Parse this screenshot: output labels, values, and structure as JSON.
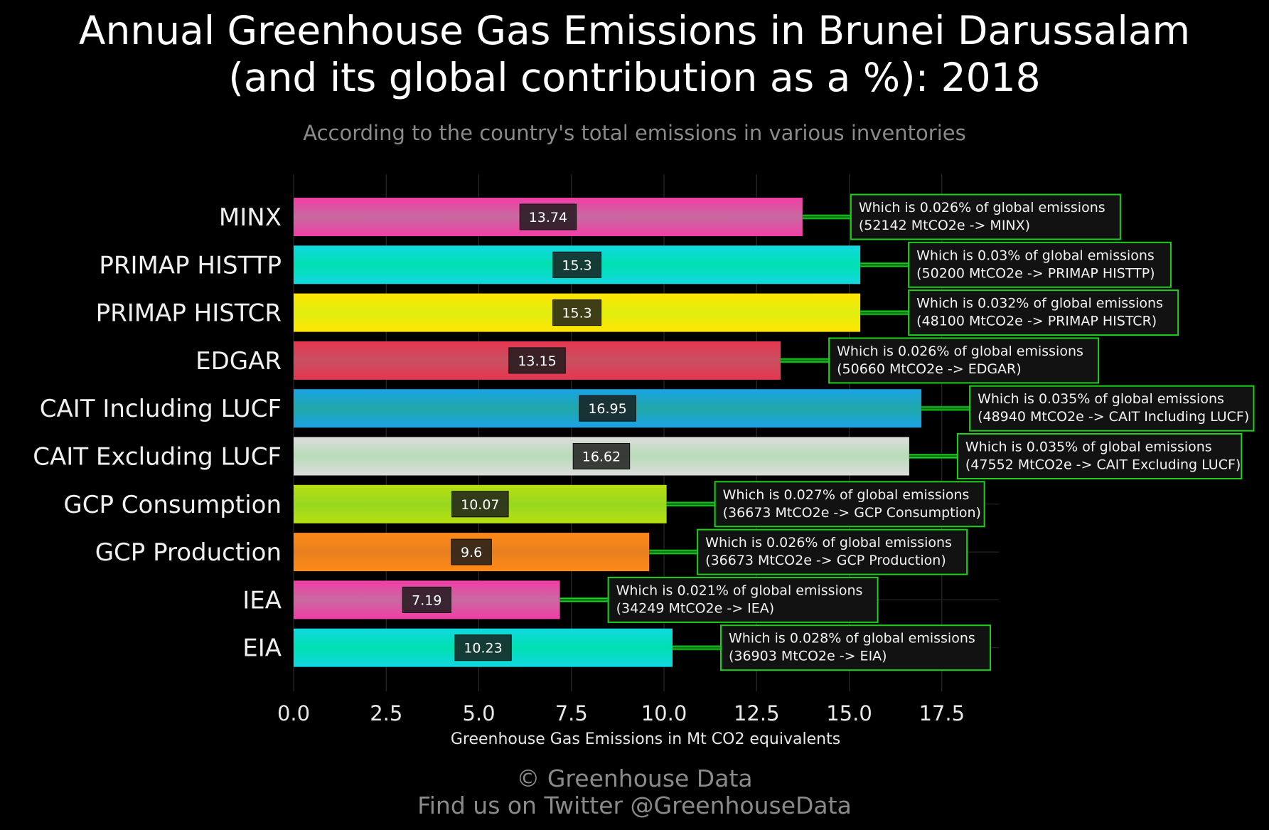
{
  "header": {
    "title_line1": "Annual Greenhouse Gas Emissions in Brunei Darussalam",
    "title_line2": "(and its global contribution as a %): 2018",
    "subtitle": "According to the country's total emissions in various inventories"
  },
  "footer": {
    "credit": "© Greenhouse Data",
    "twitter": "Find us on Twitter @GreenhouseData"
  },
  "chart_data": {
    "type": "bar",
    "orientation": "horizontal",
    "xlabel": "Greenhouse Gas Emissions in Mt CO2 equivalents",
    "xlim": [
      0,
      19
    ],
    "xticks": [
      "0.0",
      "2.5",
      "5.0",
      "7.5",
      "10.0",
      "12.5",
      "15.0",
      "17.5"
    ],
    "xtick_values": [
      0,
      2.5,
      5,
      7.5,
      10,
      12.5,
      15,
      17.5
    ],
    "grid": true,
    "categories": [
      "MINX",
      "PRIMAP HISTTP",
      "PRIMAP HISTCR",
      "EDGAR",
      "CAIT Including LUCF",
      "CAIT Excluding LUCF",
      "GCP Consumption",
      "GCP Production",
      "IEA",
      "EIA"
    ],
    "values": [
      13.74,
      15.3,
      15.3,
      13.15,
      16.95,
      16.62,
      10.07,
      9.6,
      7.19,
      10.23
    ],
    "value_labels": [
      "13.74",
      "15.3",
      "15.3",
      "13.15",
      "16.95",
      "16.62",
      "10.07",
      "9.6",
      "7.19",
      "10.23"
    ],
    "colors": [
      [
        "#f23da6",
        "#c86aa0"
      ],
      [
        "#12d8e2",
        "#00e0b0"
      ],
      [
        "#ffe500",
        "#e0ee10"
      ],
      [
        "#e63650",
        "#c85060"
      ],
      [
        "#1aa3e6",
        "#20a8a8"
      ],
      [
        "#dddddd",
        "#b8dcb8"
      ],
      [
        "#b8e010",
        "#98d820"
      ],
      [
        "#ff8a16",
        "#e88020"
      ],
      [
        "#f23da6",
        "#c86aa0"
      ],
      [
        "#12d8e2",
        "#00e0b0"
      ]
    ],
    "annotations": [
      {
        "line1": "Which is 0.026% of global emissions",
        "line2": "(52142 MtCO2e -> MINX)"
      },
      {
        "line1": "Which is 0.03% of global emissions",
        "line2": "(50200 MtCO2e -> PRIMAP HISTTP)"
      },
      {
        "line1": "Which is 0.032% of global emissions",
        "line2": "(48100 MtCO2e -> PRIMAP HISTCR)"
      },
      {
        "line1": "Which is 0.026% of global emissions",
        "line2": "(50660 MtCO2e -> EDGAR)"
      },
      {
        "line1": "Which is 0.035% of global emissions",
        "line2": "(48940 MtCO2e -> CAIT Including LUCF)"
      },
      {
        "line1": "Which is 0.035% of global emissions",
        "line2": "(47552 MtCO2e -> CAIT Excluding LUCF)"
      },
      {
        "line1": "Which is 0.027% of global emissions",
        "line2": "(36673 MtCO2e -> GCP Consumption)"
      },
      {
        "line1": "Which is 0.026% of global emissions",
        "line2": "(36673 MtCO2e -> GCP Production)"
      },
      {
        "line1": "Which is 0.021% of global emissions",
        "line2": "(34249 MtCO2e -> IEA)"
      },
      {
        "line1": "Which is 0.028% of global emissions",
        "line2": "(36903 MtCO2e -> EIA)"
      }
    ]
  }
}
